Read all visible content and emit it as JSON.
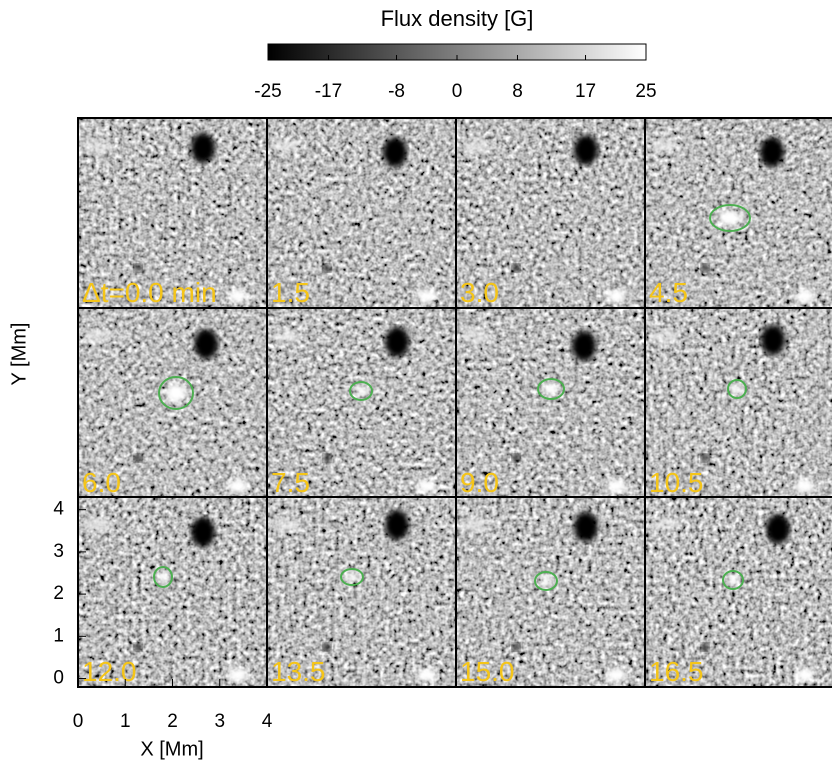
{
  "chart_data": {
    "type": "image-grid",
    "colorbar": {
      "title": "Flux density [G]",
      "lim": [
        -25,
        25
      ],
      "ticks": [
        -25,
        -17,
        -8,
        0,
        8,
        17,
        25
      ]
    },
    "panels": [
      "Δt=0.0 min",
      "1.5",
      "3.0",
      "4.5",
      "6.0",
      "7.5",
      "9.0",
      "10.5",
      "12.0",
      "13.5",
      "15.0",
      "16.5"
    ],
    "xlabel": "X [Mm]",
    "ylabel": "Y [Mm]",
    "xlim": [
      0,
      4
    ],
    "xticks": [
      0,
      1,
      2,
      3,
      4
    ],
    "ylim": [
      -0.2,
      4.3
    ],
    "yticks": [
      0,
      1,
      2,
      3,
      4
    ],
    "contour_color": "#4caf50",
    "label_color": "#f5c518"
  }
}
